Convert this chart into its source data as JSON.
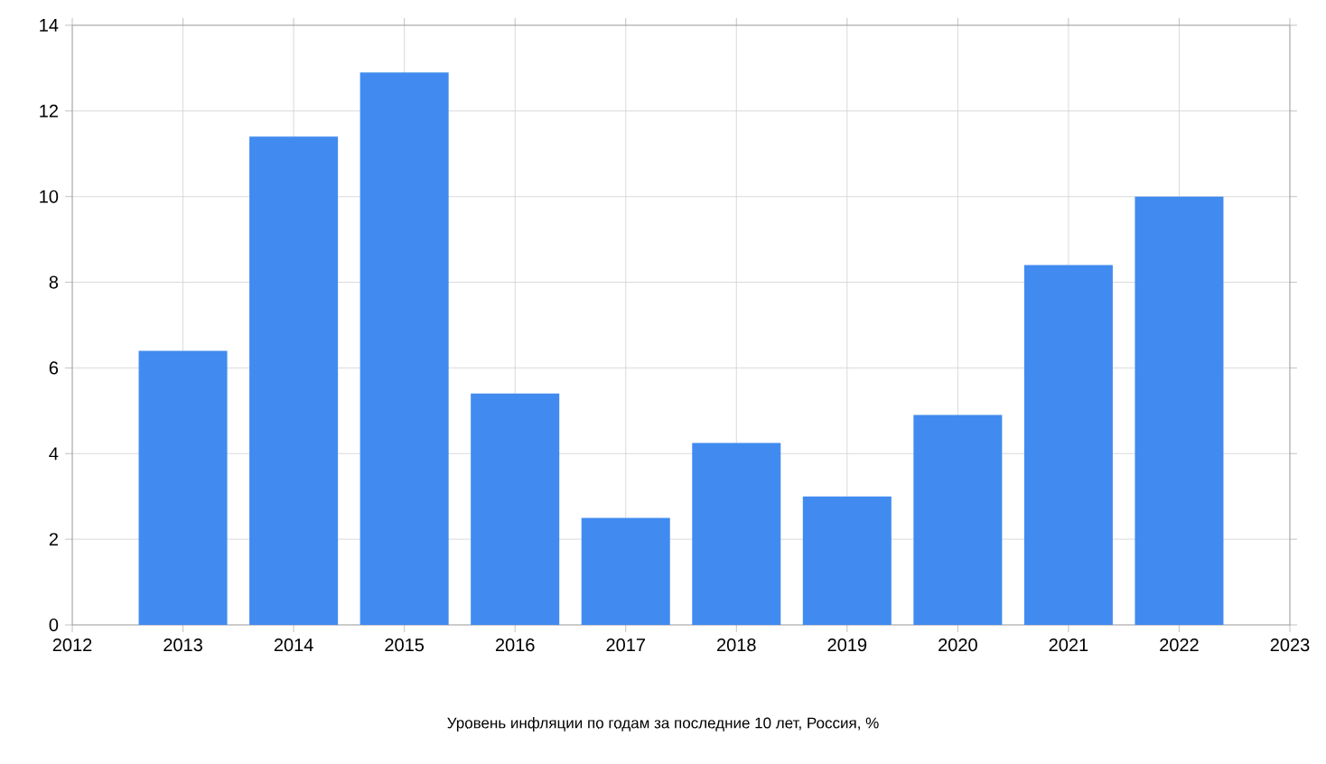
{
  "chart_data": {
    "type": "bar",
    "x": [
      2013,
      2014,
      2015,
      2016,
      2017,
      2018,
      2019,
      2020,
      2021,
      2022
    ],
    "values": [
      6.4,
      11.4,
      12.9,
      5.4,
      2.5,
      4.25,
      3.0,
      4.9,
      8.4,
      10.0
    ],
    "color": "#418bf0",
    "xlim": [
      2012,
      2023
    ],
    "xticks": [
      2012,
      2013,
      2014,
      2015,
      2016,
      2017,
      2018,
      2019,
      2020,
      2021,
      2022,
      2023
    ],
    "ylim": [
      0,
      14
    ],
    "yticks": [
      0,
      2,
      4,
      6,
      8,
      10,
      12,
      14
    ],
    "grid": true,
    "annotations": [
      "Уровень инфляции по годам за последние 10 лет, Россия, %"
    ]
  }
}
